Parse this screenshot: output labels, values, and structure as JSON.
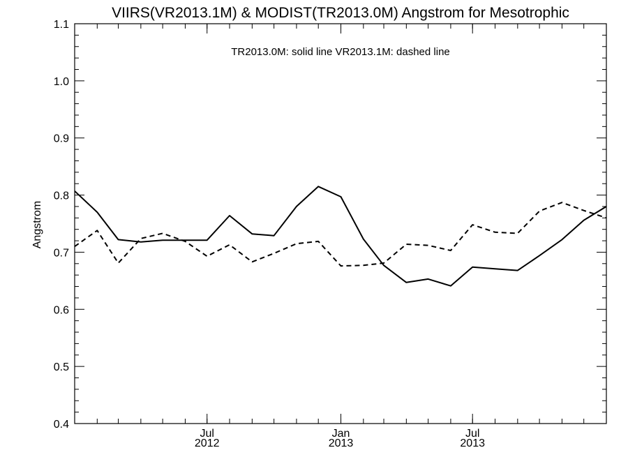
{
  "chart_data": {
    "type": "line",
    "title": "VIIRS(VR2013.1M) & MODIST(TR2013.0M)  Angstrom for Mesotrophic",
    "annotation": "TR2013.0M: solid line   VR2013.1M: dashed line",
    "xlabel": "",
    "ylabel": "Angstrom",
    "ylim": [
      0.4,
      1.1
    ],
    "yticks": [
      "0.4",
      "0.5",
      "0.6",
      "0.7",
      "0.8",
      "0.9",
      "1.0",
      "1.1"
    ],
    "xticks": [
      {
        "month": "Jul",
        "year": "2012",
        "date": "2012-07-01"
      },
      {
        "month": "Jan",
        "year": "2013",
        "date": "2013-01-01"
      },
      {
        "month": "Jul",
        "year": "2013",
        "date": "2013-07-01"
      }
    ],
    "xlim": [
      "2012-01-01",
      "2014-01-01"
    ],
    "grid": false,
    "series": [
      {
        "name": "TR2013.0M",
        "style": "solid",
        "x": [
          "2012-01-01",
          "2012-02-01",
          "2012-03-01",
          "2012-04-01",
          "2012-05-01",
          "2012-06-01",
          "2012-07-01",
          "2012-08-01",
          "2012-09-01",
          "2012-10-01",
          "2012-11-01",
          "2012-12-01",
          "2013-01-01",
          "2013-02-01",
          "2013-03-01",
          "2013-04-01",
          "2013-05-01",
          "2013-06-01",
          "2013-07-01",
          "2013-08-01",
          "2013-09-01",
          "2013-10-01",
          "2013-11-01",
          "2013-12-01",
          "2014-01-01"
        ],
        "values": [
          0.807,
          0.77,
          0.722,
          0.718,
          0.721,
          0.721,
          0.721,
          0.764,
          0.732,
          0.729,
          0.78,
          0.815,
          0.797,
          0.723,
          0.677,
          0.647,
          0.653,
          0.641,
          0.674,
          0.671,
          0.668,
          0.694,
          0.722,
          0.756,
          0.78
        ]
      },
      {
        "name": "VR2013.1M",
        "style": "dashed",
        "x": [
          "2012-01-01",
          "2012-02-01",
          "2012-03-01",
          "2012-04-01",
          "2012-05-01",
          "2012-06-01",
          "2012-07-01",
          "2012-08-01",
          "2012-09-01",
          "2012-10-01",
          "2012-11-01",
          "2012-12-01",
          "2013-01-01",
          "2013-02-01",
          "2013-03-01",
          "2013-04-01",
          "2013-05-01",
          "2013-06-01",
          "2013-07-01",
          "2013-08-01",
          "2013-09-01",
          "2013-10-01",
          "2013-11-01",
          "2013-12-01",
          "2014-01-01"
        ],
        "values": [
          0.71,
          0.738,
          0.681,
          0.724,
          0.733,
          0.719,
          0.693,
          0.713,
          0.683,
          0.698,
          0.715,
          0.719,
          0.676,
          0.677,
          0.681,
          0.714,
          0.712,
          0.703,
          0.748,
          0.735,
          0.733,
          0.772,
          0.787,
          0.773,
          0.76
        ]
      }
    ]
  }
}
